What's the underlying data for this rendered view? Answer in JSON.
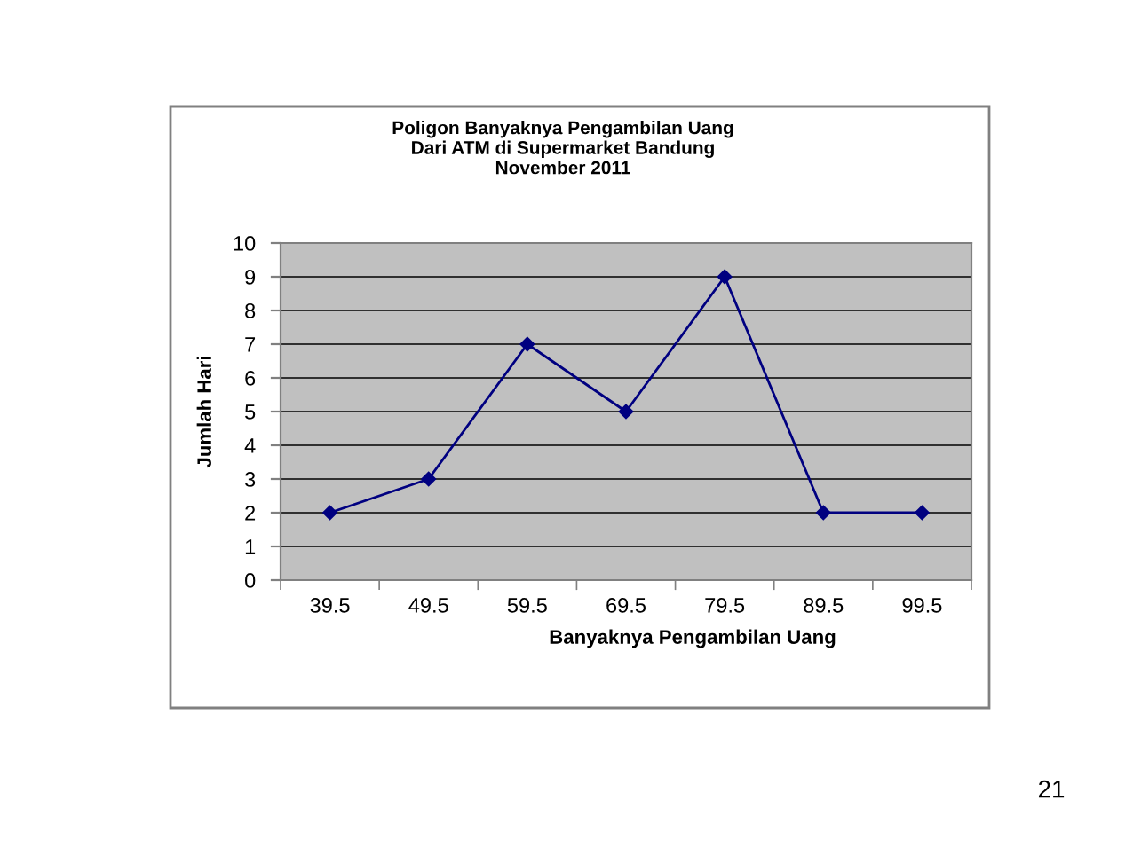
{
  "chart_data": {
    "type": "line",
    "title": "Poligon Banyaknya Pengambilan Uang\nDari ATM di Supermarket Bandung\nNovember 2011",
    "xlabel": "Banyaknya Pengambilan Uang",
    "ylabel": "Jumlah Hari",
    "categories": [
      "39.5",
      "49.5",
      "59.5",
      "69.5",
      "79.5",
      "89.5",
      "99.5"
    ],
    "series": [
      {
        "color": "#000080",
        "values": [
          2,
          3,
          7,
          5,
          9,
          2,
          2
        ]
      }
    ],
    "ylim": [
      0,
      10
    ],
    "yticks": [
      0,
      1,
      2,
      3,
      4,
      5,
      6,
      7,
      8,
      9,
      10
    ],
    "grid": "y",
    "marker": "diamond",
    "line_style": "solid",
    "annotations": [
      "21"
    ]
  }
}
